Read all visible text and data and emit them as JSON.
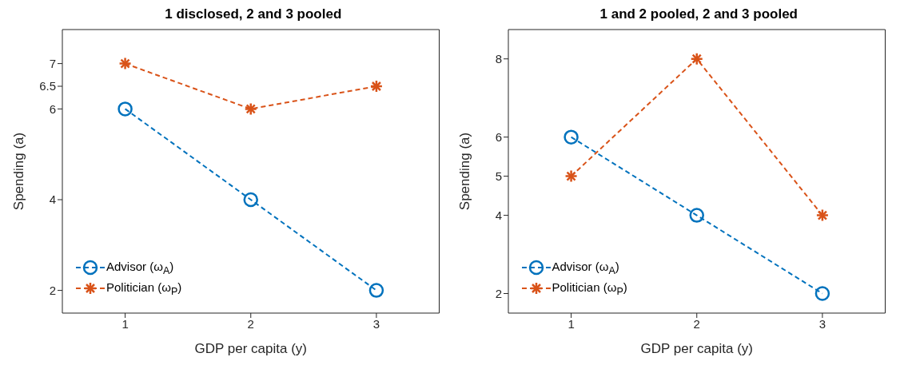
{
  "chart_data": [
    {
      "type": "line",
      "title": "1 disclosed, 2 and 3 pooled",
      "xlabel": "GDP per capita (y)",
      "ylabel": "Spending (a)",
      "x": [
        1,
        2,
        3
      ],
      "xlim": [
        0.5,
        3.5
      ],
      "xticks": [
        1,
        2,
        3
      ],
      "ylim": [
        1.5,
        7.75
      ],
      "yticks": [
        2,
        4,
        6,
        6.5,
        7
      ],
      "grid": false,
      "legend": "bottom left",
      "line_style": "dashed",
      "series": [
        {
          "name": "Advisor (ω$_{A}$)",
          "color": "#0072bd",
          "marker": "circle",
          "values": [
            6,
            4,
            2
          ]
        },
        {
          "name": "Politician (ω$_{P}$)",
          "color": "#d95319",
          "marker": "cross",
          "values": [
            7,
            6,
            6.5
          ]
        }
      ]
    },
    {
      "type": "line",
      "title": "1 and 2 pooled, 2 and 3 pooled",
      "xlabel": "GDP per capita (y)",
      "ylabel": "Spending (a)",
      "x": [
        1,
        2,
        3
      ],
      "xlim": [
        0.5,
        3.5
      ],
      "xticks": [
        1,
        2,
        3
      ],
      "ylim": [
        1.5,
        8.75
      ],
      "yticks": [
        2,
        4,
        5,
        6,
        8
      ],
      "grid": false,
      "legend": "bottom left",
      "line_style": "dashed",
      "series": [
        {
          "name": "Advisor (ω$_{A}$)",
          "color": "#0072bd",
          "marker": "circle",
          "values": [
            6,
            4,
            2
          ]
        },
        {
          "name": "Politician (ω$_{P}$)",
          "color": "#d95319",
          "marker": "cross",
          "values": [
            5,
            8,
            4
          ]
        }
      ]
    }
  ]
}
